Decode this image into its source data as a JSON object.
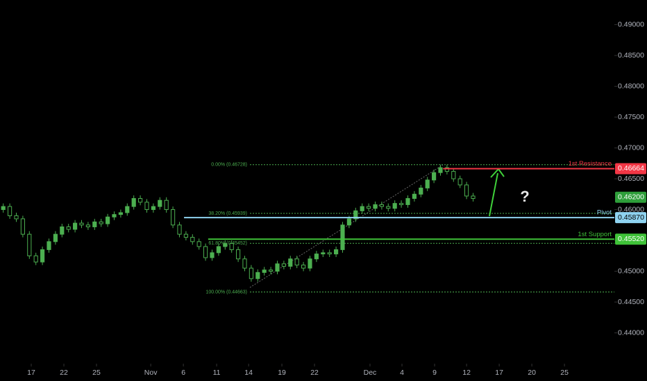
{
  "chart_data": {
    "type": "candlestick",
    "x": [
      0,
      1,
      2,
      3,
      4,
      5,
      6,
      7,
      8,
      9,
      10,
      11,
      12,
      13,
      14,
      15,
      16,
      17,
      18,
      19,
      20,
      21,
      22,
      23,
      24,
      25,
      26,
      27,
      28,
      29,
      30,
      31,
      32,
      33,
      34,
      35,
      36,
      37,
      38,
      39,
      40,
      41,
      42,
      43,
      44,
      45,
      46,
      47,
      48,
      49,
      50,
      51,
      52,
      53,
      54,
      55,
      56,
      57,
      58,
      59,
      60,
      61,
      62,
      63,
      64,
      65,
      66,
      67,
      68,
      69,
      70,
      71,
      72
    ],
    "open": [
      0.46,
      0.4605,
      0.459,
      0.4585,
      0.456,
      0.4525,
      0.4515,
      0.4535,
      0.4548,
      0.456,
      0.4572,
      0.4568,
      0.4578,
      0.4575,
      0.4572,
      0.458,
      0.4577,
      0.4588,
      0.4592,
      0.4595,
      0.4605,
      0.4618,
      0.4612,
      0.46,
      0.4605,
      0.4615,
      0.46,
      0.4575,
      0.456,
      0.4555,
      0.4548,
      0.454,
      0.4522,
      0.453,
      0.454,
      0.4545,
      0.4535,
      0.452,
      0.4505,
      0.4488,
      0.4498,
      0.4502,
      0.45,
      0.4512,
      0.4508,
      0.452,
      0.451,
      0.4505,
      0.452,
      0.4528,
      0.453,
      0.4528,
      0.4535,
      0.4575,
      0.4585,
      0.4598,
      0.4605,
      0.4602,
      0.4608,
      0.4605,
      0.4602,
      0.461,
      0.4608,
      0.4618,
      0.4625,
      0.4635,
      0.4648,
      0.466,
      0.4668,
      0.4662,
      0.465,
      0.464,
      0.4622
    ],
    "high": [
      0.461,
      0.461,
      0.4595,
      0.459,
      0.4565,
      0.453,
      0.454,
      0.4553,
      0.4565,
      0.4577,
      0.4577,
      0.4583,
      0.4583,
      0.458,
      0.4585,
      0.4585,
      0.4593,
      0.4597,
      0.46,
      0.461,
      0.4623,
      0.4623,
      0.4617,
      0.461,
      0.462,
      0.462,
      0.4605,
      0.458,
      0.4565,
      0.456,
      0.4553,
      0.4545,
      0.4535,
      0.4545,
      0.455,
      0.455,
      0.454,
      0.4525,
      0.451,
      0.4503,
      0.4507,
      0.4507,
      0.4517,
      0.4517,
      0.4525,
      0.4525,
      0.4515,
      0.4525,
      0.4533,
      0.4535,
      0.4535,
      0.454,
      0.458,
      0.459,
      0.4603,
      0.461,
      0.461,
      0.4613,
      0.4613,
      0.461,
      0.4615,
      0.4615,
      0.4623,
      0.463,
      0.464,
      0.4653,
      0.4665,
      0.4673,
      0.4673,
      0.4667,
      0.4655,
      0.4645,
      0.4627
    ],
    "low": [
      0.4595,
      0.4585,
      0.458,
      0.4555,
      0.452,
      0.451,
      0.451,
      0.453,
      0.4543,
      0.4555,
      0.4563,
      0.4563,
      0.457,
      0.4567,
      0.4567,
      0.4572,
      0.4572,
      0.4583,
      0.4587,
      0.459,
      0.46,
      0.4607,
      0.4595,
      0.4595,
      0.46,
      0.4595,
      0.457,
      0.4555,
      0.455,
      0.4543,
      0.4535,
      0.4517,
      0.4517,
      0.4525,
      0.4535,
      0.453,
      0.4515,
      0.45,
      0.4483,
      0.4483,
      0.4493,
      0.4495,
      0.4495,
      0.4503,
      0.4503,
      0.4505,
      0.45,
      0.45,
      0.4515,
      0.4523,
      0.4523,
      0.4523,
      0.453,
      0.457,
      0.458,
      0.4593,
      0.4597,
      0.4597,
      0.46,
      0.4597,
      0.4597,
      0.4603,
      0.4603,
      0.4613,
      0.462,
      0.463,
      0.4643,
      0.4655,
      0.4657,
      0.4645,
      0.4635,
      0.4617,
      0.4613
    ],
    "close": [
      0.4605,
      0.459,
      0.4585,
      0.456,
      0.4525,
      0.4515,
      0.4535,
      0.4548,
      0.456,
      0.4572,
      0.4568,
      0.4578,
      0.4575,
      0.4572,
      0.458,
      0.4577,
      0.4588,
      0.4592,
      0.4595,
      0.4605,
      0.4618,
      0.4612,
      0.46,
      0.4605,
      0.4615,
      0.46,
      0.4575,
      0.456,
      0.4555,
      0.4548,
      0.454,
      0.4522,
      0.453,
      0.454,
      0.4545,
      0.4535,
      0.452,
      0.4505,
      0.4488,
      0.4498,
      0.4502,
      0.45,
      0.4512,
      0.4508,
      0.452,
      0.451,
      0.4505,
      0.452,
      0.4528,
      0.453,
      0.4528,
      0.4535,
      0.4575,
      0.4585,
      0.4598,
      0.4605,
      0.4602,
      0.4608,
      0.4605,
      0.4602,
      0.461,
      0.4608,
      0.4618,
      0.4625,
      0.4635,
      0.4648,
      0.466,
      0.4668,
      0.4662,
      0.465,
      0.464,
      0.4622,
      0.4618
    ],
    "up_color": "#4caf50",
    "down_color": "#000000",
    "wick_color": "#4caf50",
    "xlim": [
      -0.5,
      93.65
    ],
    "xticks": [
      {
        "value": 4.29,
        "label": "17"
      },
      {
        "value": 9.29,
        "label": "22"
      },
      {
        "value": 14.29,
        "label": "25"
      },
      {
        "value": 22.6,
        "label": "Nov"
      },
      {
        "value": 27.6,
        "label": "6"
      },
      {
        "value": 32.7,
        "label": "11"
      },
      {
        "value": 37.6,
        "label": "14"
      },
      {
        "value": 42.7,
        "label": "19"
      },
      {
        "value": 47.7,
        "label": "22"
      },
      {
        "value": 56.2,
        "label": "Dec"
      },
      {
        "value": 61.1,
        "label": "4"
      },
      {
        "value": 66.1,
        "label": "9"
      },
      {
        "value": 71.0,
        "label": "12"
      },
      {
        "value": 76.0,
        "label": "17"
      },
      {
        "value": 81.0,
        "label": "20"
      },
      {
        "value": 86.0,
        "label": "25"
      }
    ],
    "ylim": [
      0.435,
      0.494
    ],
    "yticks": [
      {
        "value": 0.49,
        "label": "0.49000"
      },
      {
        "value": 0.485,
        "label": "0.48500"
      },
      {
        "value": 0.48,
        "label": "0.48000"
      },
      {
        "value": 0.475,
        "label": "0.47500"
      },
      {
        "value": 0.47,
        "label": "0.47000"
      },
      {
        "value": 0.465,
        "label": "0.46500"
      },
      {
        "value": 0.46,
        "label": "0.46000"
      },
      {
        "value": 0.455,
        "label": "0.45500"
      },
      {
        "value": 0.45,
        "label": "0.45000"
      },
      {
        "value": 0.445,
        "label": "0.44500"
      },
      {
        "value": 0.44,
        "label": "0.44000"
      }
    ],
    "fib_levels": [
      {
        "label": "0.00% (0.46728)",
        "value": 0.46728
      },
      {
        "label": "38.20% (0.45939)",
        "value": 0.45939
      },
      {
        "label": "61.80% (0.45452)",
        "value": 0.45452
      },
      {
        "label": "100.00% (0.44663)",
        "value": 0.44663
      }
    ],
    "fib_start": 37.8,
    "fib_color": "#4caf50",
    "levels": [
      {
        "name": "1st Resistance",
        "price": {
          "value": 0.46664,
          "label": "0.46664"
        },
        "color": "#f23645",
        "x_start": 67.4
      },
      {
        "name": "Pivot",
        "price": {
          "value": 0.4587,
          "label": "0.45870"
        },
        "color": "#8fd3f0",
        "x_start": 27.7
      },
      {
        "name": "1st Support",
        "price": {
          "value": 0.4552,
          "label": "0.45520"
        },
        "color": "#3fc238",
        "x_start": 31.4
      }
    ],
    "current_price": {
      "value": 0.462,
      "label": "0.46200"
    },
    "current_color": "#2e9e3a",
    "annotation": "?"
  }
}
